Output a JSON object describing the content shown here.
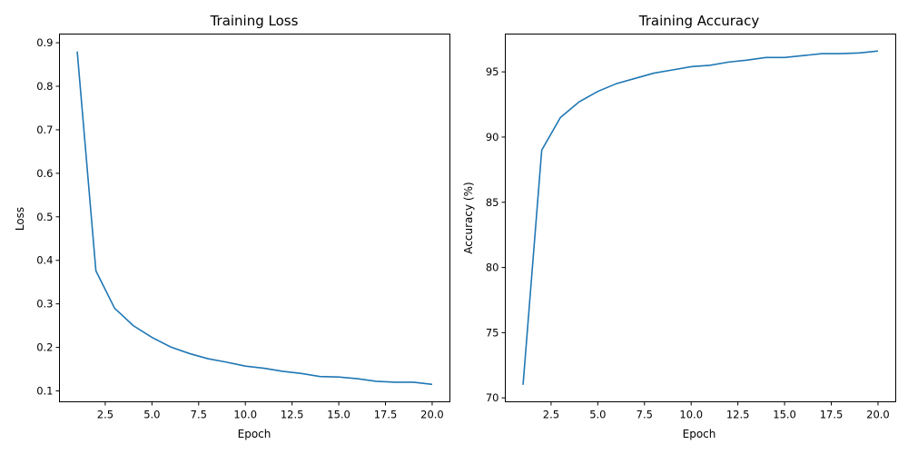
{
  "chart_data": [
    {
      "type": "line",
      "title": "Training Loss",
      "xlabel": "Epoch",
      "ylabel": "Loss",
      "xlim": [
        0.05,
        20.95
      ],
      "ylim": [
        0.075,
        0.92
      ],
      "xticks": [
        2.5,
        5.0,
        7.5,
        10.0,
        12.5,
        15.0,
        17.5,
        20.0
      ],
      "xtick_labels": [
        "2.5",
        "5.0",
        "7.5",
        "10.0",
        "12.5",
        "15.0",
        "17.5",
        "20.0"
      ],
      "yticks": [
        0.1,
        0.2,
        0.3,
        0.4,
        0.5,
        0.6,
        0.7,
        0.8,
        0.9
      ],
      "ytick_labels": [
        "0.1",
        "0.2",
        "0.3",
        "0.4",
        "0.5",
        "0.6",
        "0.7",
        "0.8",
        "0.9"
      ],
      "grid": false,
      "x": [
        1,
        2,
        3,
        4,
        5,
        6,
        7,
        8,
        9,
        10,
        11,
        12,
        13,
        14,
        15,
        16,
        17,
        18,
        19,
        20
      ],
      "series": [
        {
          "color": "#1f77b4",
          "values": [
            0.88,
            0.376,
            0.29,
            0.25,
            0.223,
            0.201,
            0.186,
            0.174,
            0.166,
            0.157,
            0.152,
            0.145,
            0.14,
            0.133,
            0.132,
            0.128,
            0.122,
            0.12,
            0.12,
            0.115
          ]
        }
      ]
    },
    {
      "type": "line",
      "title": "Training Accuracy",
      "xlabel": "Epoch",
      "ylabel": "Accuracy (%)",
      "xlim": [
        0.05,
        20.95
      ],
      "ylim": [
        69.7,
        97.9
      ],
      "xticks": [
        2.5,
        5.0,
        7.5,
        10.0,
        12.5,
        15.0,
        17.5,
        20.0
      ],
      "xtick_labels": [
        "2.5",
        "5.0",
        "7.5",
        "10.0",
        "12.5",
        "15.0",
        "17.5",
        "20.0"
      ],
      "yticks": [
        70,
        75,
        80,
        85,
        90,
        95
      ],
      "ytick_labels": [
        "70",
        "75",
        "80",
        "85",
        "90",
        "95"
      ],
      "grid": false,
      "x": [
        1,
        2,
        3,
        4,
        5,
        6,
        7,
        8,
        9,
        10,
        11,
        12,
        13,
        14,
        15,
        16,
        17,
        18,
        19,
        20
      ],
      "series": [
        {
          "color": "#1f77b4",
          "values": [
            71.0,
            89.0,
            91.5,
            92.7,
            93.5,
            94.1,
            94.5,
            94.9,
            95.15,
            95.4,
            95.5,
            95.75,
            95.9,
            96.1,
            96.1,
            96.25,
            96.4,
            96.4,
            96.45,
            96.6
          ]
        }
      ]
    }
  ]
}
